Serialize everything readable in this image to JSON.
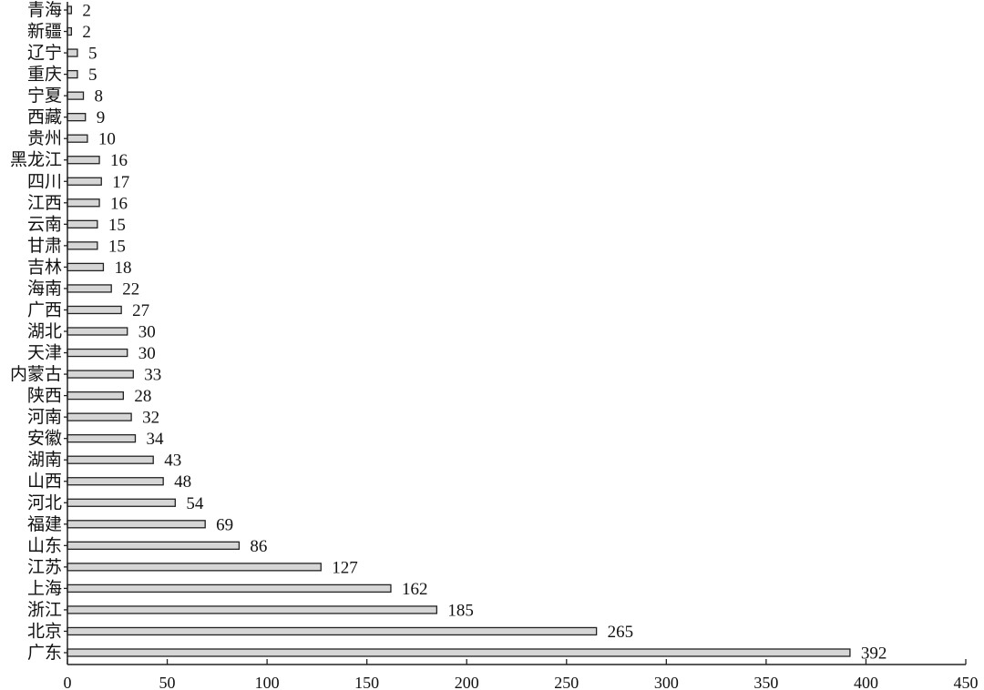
{
  "chart_data": {
    "type": "bar",
    "orientation": "horizontal",
    "title": "",
    "xlabel": "",
    "ylabel": "",
    "categories": [
      "广东",
      "北京",
      "浙江",
      "上海",
      "江苏",
      "山东",
      "福建",
      "河北",
      "山西",
      "湖南",
      "安徽",
      "河南",
      "陕西",
      "内蒙古",
      "天津",
      "湖北",
      "广西",
      "海南",
      "吉林",
      "甘肃",
      "云南",
      "江西",
      "四川",
      "黑龙江",
      "贵州",
      "西藏",
      "宁夏",
      "重庆",
      "辽宁",
      "新疆",
      "青海"
    ],
    "values": [
      392,
      265,
      185,
      162,
      127,
      86,
      69,
      54,
      48,
      43,
      34,
      32,
      28,
      33,
      30,
      30,
      27,
      22,
      18,
      15,
      15,
      16,
      17,
      16,
      10,
      9,
      8,
      5,
      5,
      2,
      2
    ],
    "xlim": [
      0,
      450
    ],
    "xticks": [
      0,
      50,
      100,
      150,
      200,
      250,
      300,
      350,
      400,
      450
    ],
    "grid": false,
    "legend": "none",
    "bar_fill": "#d6d6d6",
    "bar_stroke": "#222222"
  }
}
